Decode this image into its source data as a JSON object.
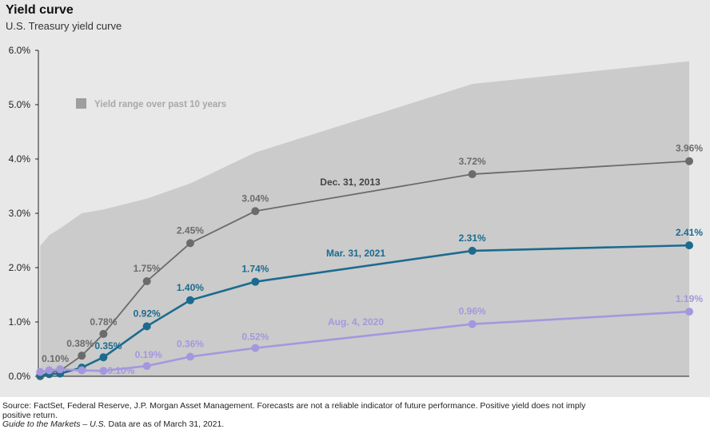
{
  "header": {
    "title": "Yield curve",
    "subtitle": "U.S. Treasury yield curve"
  },
  "footer": {
    "source": "Source: FactSet, Federal Reserve, J.P. Morgan Asset Management. Forecasts are not a reliable indicator of future performance. Positive yield does not imply positive return.",
    "guide": "Guide to the Markets – U.S.",
    "asof": " Data are as of March 31, 2021."
  },
  "chart_data": {
    "type": "line",
    "title": "Yield curve",
    "subtitle": "U.S. Treasury yield curve",
    "xlabel": "",
    "ylabel": "",
    "x": [
      0.083,
      0.5,
      1,
      2,
      3,
      5,
      7,
      10,
      20,
      30
    ],
    "ylim": [
      0,
      6
    ],
    "yticks": [
      "0.0%",
      "1.0%",
      "2.0%",
      "3.0%",
      "4.0%",
      "5.0%",
      "6.0%"
    ],
    "grid": false,
    "legend": {
      "label": "Yield range over past 10 years",
      "placement": "top-left"
    },
    "range_band": {
      "name": "Yield range over past 10 years",
      "color": "#cbcbcb",
      "low": [
        0,
        0,
        0,
        0,
        0,
        0,
        0,
        0,
        0,
        0
      ],
      "high": [
        2.4,
        2.6,
        2.72,
        3.0,
        3.07,
        3.27,
        3.55,
        4.12,
        5.38,
        5.8
      ]
    },
    "series": [
      {
        "name": "Dec. 31, 2013",
        "color": "#6b6b6b",
        "values": [
          0.0,
          0.07,
          0.1,
          0.38,
          0.78,
          1.75,
          2.45,
          3.04,
          3.72,
          3.96
        ],
        "labels": [
          null,
          null,
          "0.10%",
          "0.38%",
          "0.78%",
          "1.75%",
          "2.45%",
          "3.04%",
          "3.72%",
          "3.96%"
        ]
      },
      {
        "name": "Mar. 31, 2021",
        "color": "#1c6b8e",
        "values": [
          0.02,
          0.04,
          0.05,
          0.16,
          0.35,
          0.92,
          1.4,
          1.74,
          2.31,
          2.41
        ],
        "labels": [
          null,
          null,
          null,
          null,
          "0.35%",
          "0.92%",
          "1.40%",
          "1.74%",
          "2.31%",
          "2.41%"
        ]
      },
      {
        "name": "Aug. 4, 2020",
        "color": "#a597de",
        "values": [
          0.08,
          0.11,
          0.13,
          0.11,
          0.1,
          0.19,
          0.36,
          0.52,
          0.96,
          1.19
        ],
        "labels": [
          null,
          null,
          null,
          null,
          "0.10%",
          "0.19%",
          "0.36%",
          "0.52%",
          "0.96%",
          "1.19%"
        ]
      }
    ]
  }
}
